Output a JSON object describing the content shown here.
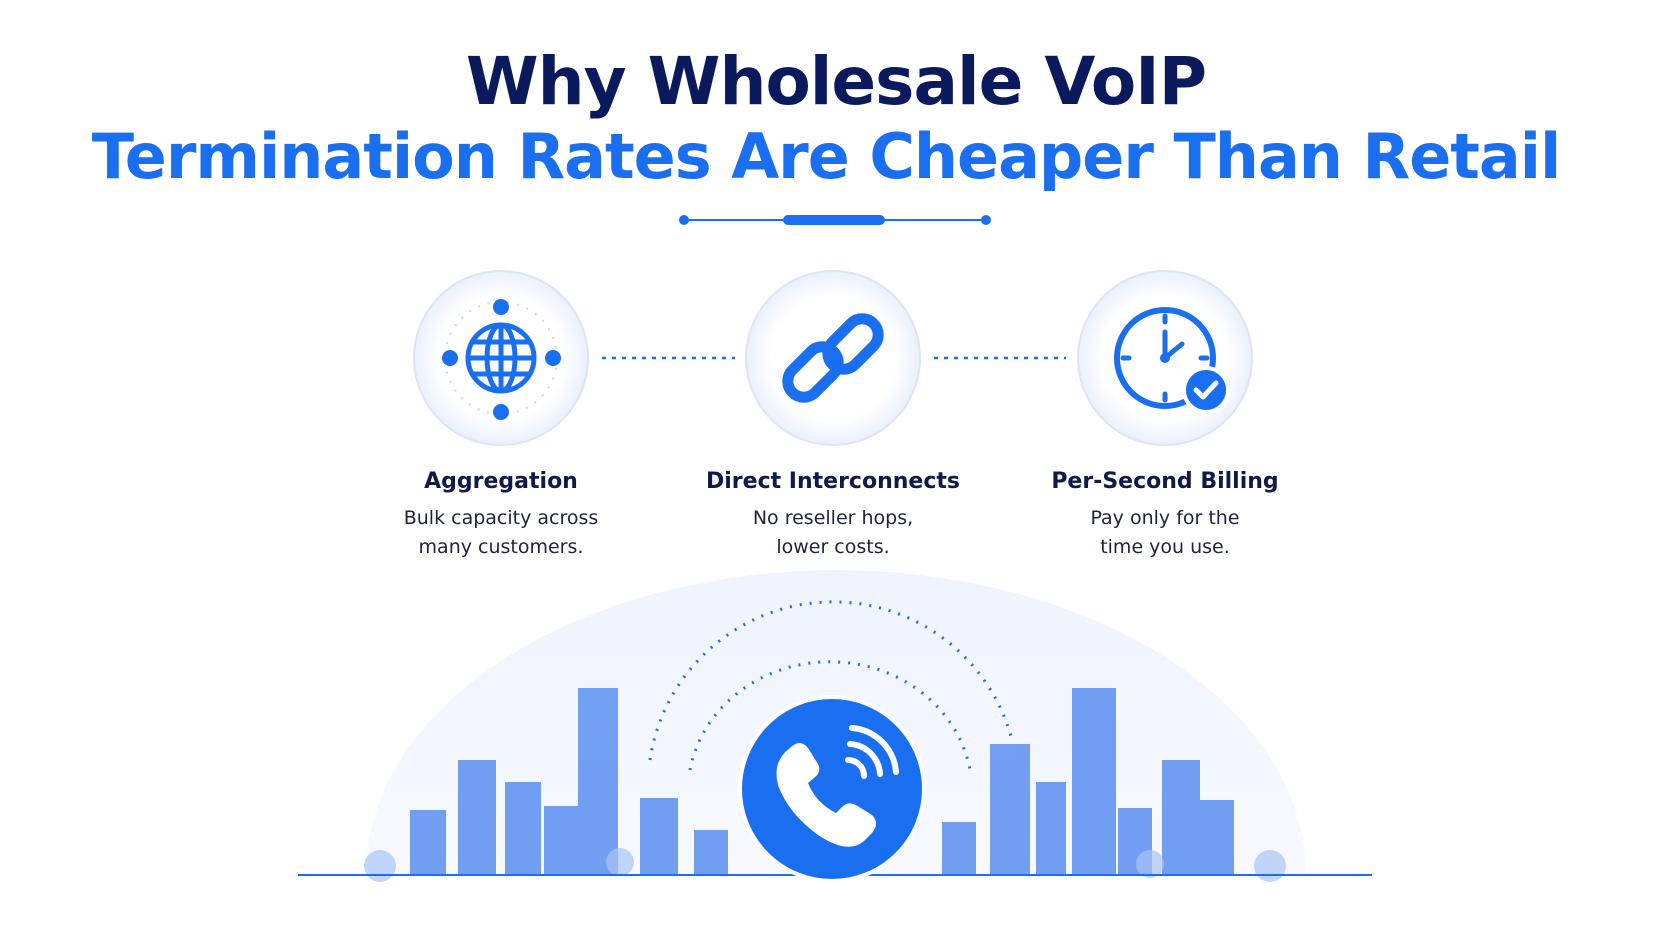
{
  "header": {
    "title_line1": "Why Wholesale VoIP",
    "title_line2": "Termination Rates Are Cheaper Than Retail"
  },
  "features": [
    {
      "title": "Aggregation",
      "description": [
        "Bulk capacity across",
        "many customers."
      ]
    },
    {
      "title": "Direct Interconnects",
      "description": [
        "No reseller hops,",
        "lower costs."
      ]
    },
    {
      "title": "Per-Second Billing",
      "description": [
        "Pay only for the",
        "time you use."
      ]
    }
  ]
}
